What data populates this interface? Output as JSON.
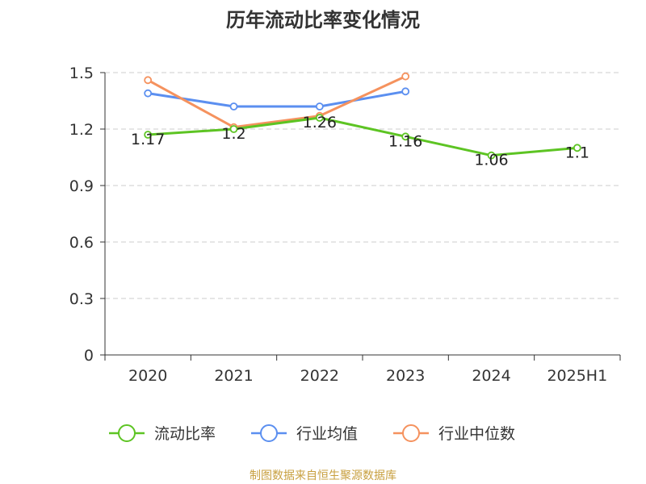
{
  "chart_data": {
    "type": "line",
    "title": "历年流动比率变化情况",
    "categories": [
      "2020",
      "2021",
      "2022",
      "2023",
      "2024",
      "2025H1"
    ],
    "ylim": [
      0,
      1.5
    ],
    "yticks": [
      "0",
      "0.3",
      "0.6",
      "0.9",
      "1.2",
      "1.5"
    ],
    "grid": true,
    "legend_position": "bottom",
    "series": [
      {
        "name": "流动比率",
        "color": "#5dc423",
        "values": [
          1.17,
          1.2,
          1.26,
          1.16,
          1.06,
          1.1
        ],
        "labels": [
          "1.17",
          "1.2",
          "1.26",
          "1.16",
          "1.06",
          "1.1"
        ]
      },
      {
        "name": "行业均值",
        "color": "#5b8ff0",
        "values": [
          1.39,
          1.32,
          1.32,
          1.4,
          null,
          null
        ]
      },
      {
        "name": "行业中位数",
        "color": "#f5925e",
        "values": [
          1.46,
          1.21,
          1.27,
          1.48,
          null,
          null
        ]
      }
    ],
    "source": "制图数据来自恒生聚源数据库"
  }
}
